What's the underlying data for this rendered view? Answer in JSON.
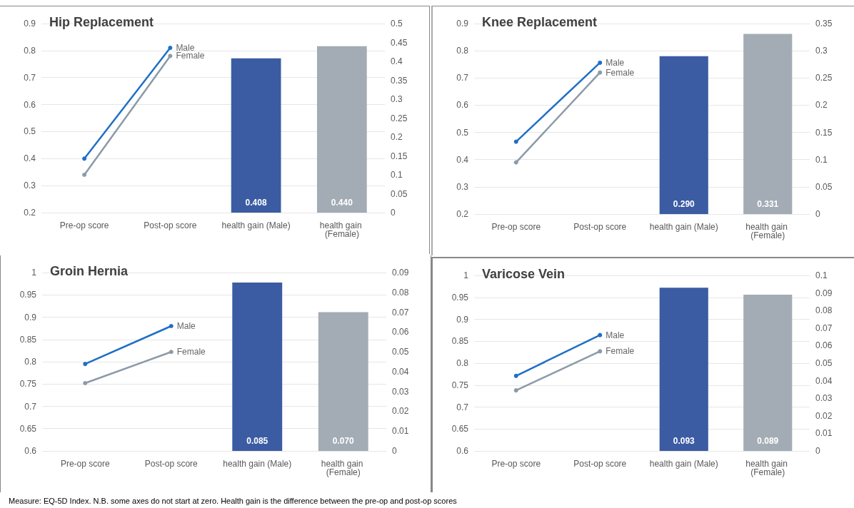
{
  "chart_data": [
    {
      "type": "line",
      "title": "Hip Replacement",
      "categories": [
        "Pre-op score",
        "Post-op score",
        "health gain (Male)",
        "health gain (Female)"
      ],
      "series": [
        {
          "name": "Male",
          "color": "#1f6fc5",
          "values": [
            0.4,
            0.81,
            null,
            null
          ]
        },
        {
          "name": "Female",
          "color": "#8c9aa8",
          "values": [
            0.34,
            0.78,
            null,
            null
          ]
        },
        {
          "type": "bar",
          "axis": "y2",
          "colors": [
            "#3b5ca3",
            "#3b5ca3",
            "#3b5ca3",
            "#a3acb5"
          ],
          "values": [
            null,
            null,
            0.408,
            0.44
          ],
          "value_labels": [
            null,
            null,
            "0.408",
            "0.440"
          ]
        }
      ],
      "ylim": [
        0.2,
        0.9
      ],
      "yticks": [
        0.2,
        0.3,
        0.4,
        0.5,
        0.6,
        0.7,
        0.8,
        0.9
      ],
      "y2lim": [
        0,
        0.5
      ],
      "y2ticks": [
        0,
        0.05,
        0.1,
        0.15,
        0.2,
        0.25,
        0.3,
        0.35,
        0.4,
        0.45,
        0.5
      ],
      "grid": "y",
      "marker": "circle",
      "legend": false
    },
    {
      "type": "line",
      "title": "Knee Replacement",
      "categories": [
        "Pre-op score",
        "Post-op score",
        "health gain (Male)",
        "health gain (Female)"
      ],
      "series": [
        {
          "name": "Male",
          "color": "#1f6fc5",
          "values": [
            0.466,
            0.756,
            null,
            null
          ]
        },
        {
          "name": "Female",
          "color": "#8c9aa8",
          "values": [
            0.39,
            0.72,
            null,
            null
          ]
        },
        {
          "type": "bar",
          "axis": "y2",
          "colors": [
            "#3b5ca3",
            "#3b5ca3",
            "#3b5ca3",
            "#a3acb5"
          ],
          "values": [
            null,
            null,
            0.29,
            0.331
          ],
          "value_labels": [
            null,
            null,
            "0.290",
            "0.331"
          ]
        }
      ],
      "ylim": [
        0.2,
        0.9
      ],
      "yticks": [
        0.2,
        0.3,
        0.4,
        0.5,
        0.6,
        0.7,
        0.8,
        0.9
      ],
      "y2lim": [
        0,
        0.35
      ],
      "y2ticks": [
        0,
        0.05,
        0.1,
        0.15,
        0.2,
        0.25,
        0.3,
        0.35
      ],
      "grid": "y",
      "marker": "circle",
      "legend": false
    },
    {
      "type": "line",
      "title": "Groin Hernia",
      "categories": [
        "Pre-op score",
        "Post-op score",
        "health gain (Male)",
        "health gain (Female)"
      ],
      "series": [
        {
          "name": "Male",
          "color": "#1f6fc5",
          "values": [
            0.795,
            0.88,
            null,
            null
          ]
        },
        {
          "name": "Female",
          "color": "#8c9aa8",
          "values": [
            0.752,
            0.822,
            null,
            null
          ]
        },
        {
          "type": "bar",
          "axis": "y2",
          "colors": [
            "#3b5ca3",
            "#3b5ca3",
            "#3b5ca3",
            "#a3acb5"
          ],
          "values": [
            null,
            null,
            0.085,
            0.07
          ],
          "value_labels": [
            null,
            null,
            "0.085",
            "0.070"
          ]
        }
      ],
      "ylim": [
        0.6,
        1
      ],
      "yticks": [
        0.6,
        0.65,
        0.7,
        0.75,
        0.8,
        0.85,
        0.9,
        0.95,
        1
      ],
      "y2lim": [
        0,
        0.09
      ],
      "y2ticks": [
        0,
        0.01,
        0.02,
        0.03,
        0.04,
        0.05,
        0.06,
        0.07,
        0.08,
        0.09
      ],
      "grid": "y",
      "marker": "circle",
      "legend": false
    },
    {
      "type": "line",
      "title": "Varicose Vein",
      "categories": [
        "Pre-op score",
        "Post-op score",
        "health gain (Male)",
        "health gain (Female)"
      ],
      "series": [
        {
          "name": "Male",
          "color": "#1f6fc5",
          "values": [
            0.771,
            0.864,
            null,
            null
          ]
        },
        {
          "name": "Female",
          "color": "#8c9aa8",
          "values": [
            0.738,
            0.827,
            null,
            null
          ]
        },
        {
          "type": "bar",
          "axis": "y2",
          "colors": [
            "#3b5ca3",
            "#3b5ca3",
            "#3b5ca3",
            "#a3acb5"
          ],
          "values": [
            null,
            null,
            0.093,
            0.089
          ],
          "value_labels": [
            null,
            null,
            "0.093",
            "0.089"
          ]
        }
      ],
      "ylim": [
        0.6,
        1
      ],
      "yticks": [
        0.6,
        0.65,
        0.7,
        0.75,
        0.8,
        0.85,
        0.9,
        0.95,
        1
      ],
      "y2lim": [
        0,
        0.1
      ],
      "y2ticks": [
        0,
        0.01,
        0.02,
        0.03,
        0.04,
        0.05,
        0.06,
        0.07,
        0.08,
        0.09,
        0.1
      ],
      "grid": "y",
      "marker": "circle",
      "legend": false,
      "annotations": [
        "Measure: EQ-5D Index. N.B. some axes do not start at zero. Health gain is the difference between the pre-op and post-op scores"
      ]
    }
  ]
}
